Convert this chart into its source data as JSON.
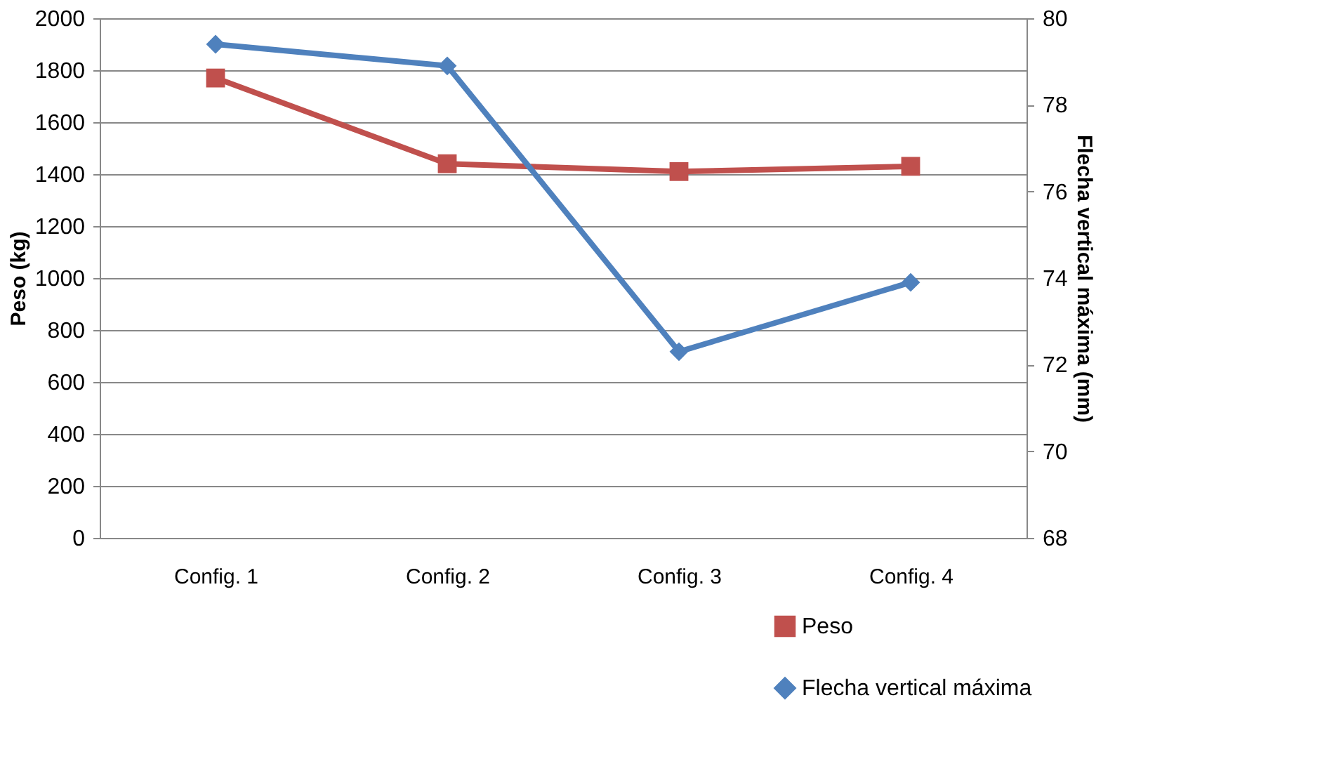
{
  "chart_data": {
    "type": "line",
    "categories": [
      "Config. 1",
      "Config. 2",
      "Config. 3",
      "Config. 4"
    ],
    "ylabel": "Peso (kg)",
    "y2label": "Flecha vertical máxima (mm)",
    "ylim": [
      0,
      2000
    ],
    "yticks": [
      0,
      200,
      400,
      600,
      800,
      1000,
      1200,
      1400,
      1600,
      1800,
      2000
    ],
    "y2lim": [
      68,
      80
    ],
    "y2ticks": [
      68,
      70,
      72,
      74,
      76,
      78,
      80
    ],
    "grid": "y",
    "legend": "bottom right",
    "line_style": "solid",
    "series": [
      {
        "name": "Peso",
        "color": "#c0504d",
        "marker": "square",
        "values": [
          1770,
          1440,
          1410,
          1430
        ]
      },
      {
        "name": "Flecha vertical máxima",
        "color": "#4f81bd",
        "marker": "diamond",
        "axis": "y2",
        "values": [
          79.4,
          78.9,
          72.3,
          73.9
        ]
      }
    ]
  }
}
